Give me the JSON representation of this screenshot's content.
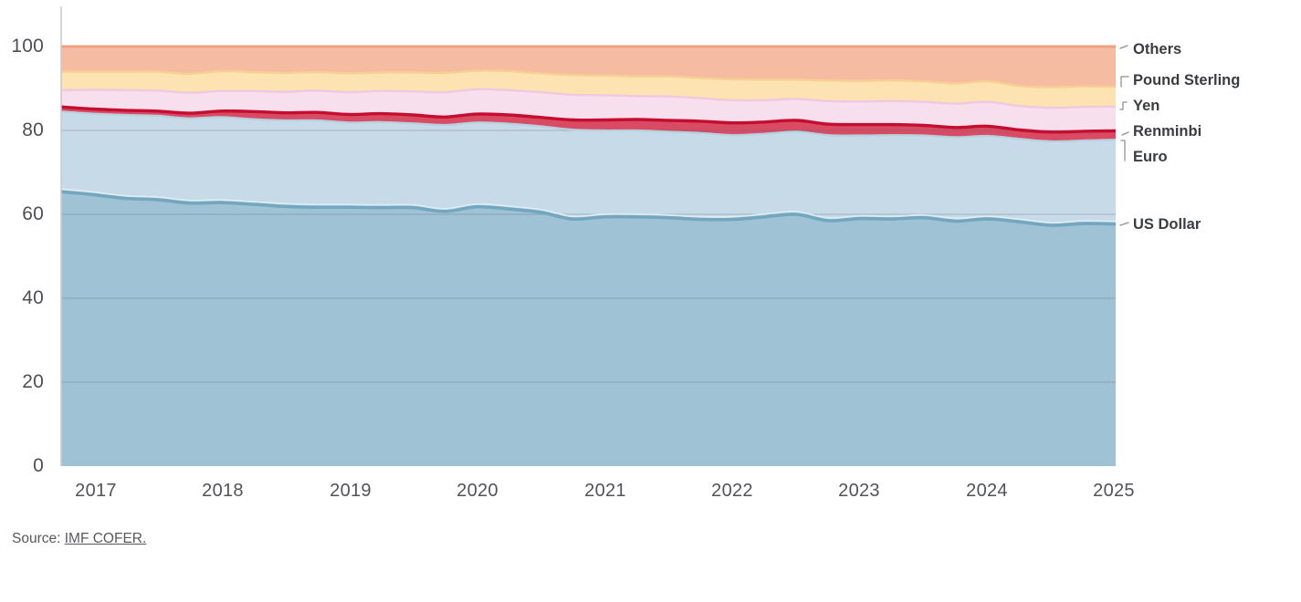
{
  "page": {
    "background": "#ffffff"
  },
  "source": {
    "prefix": "Source: ",
    "link_text": "IMF COFER."
  },
  "chart_data": {
    "type": "area",
    "stacked": true,
    "unit": "%",
    "title": "",
    "xlabel": "",
    "ylabel": "",
    "ylim": [
      0,
      100
    ],
    "y_ticks": [
      0,
      20,
      40,
      60,
      80,
      100
    ],
    "x_tick_labels": [
      "2017",
      "2018",
      "2019",
      "2020",
      "2021",
      "2022",
      "2023",
      "2024",
      "2025"
    ],
    "grid": true,
    "legend_position": "right",
    "x_quarters": [
      "2016 Q4",
      "2017 Q1",
      "2017 Q2",
      "2017 Q3",
      "2017 Q4",
      "2018 Q1",
      "2018 Q2",
      "2018 Q3",
      "2018 Q4",
      "2019 Q1",
      "2019 Q2",
      "2019 Q3",
      "2019 Q4",
      "2020 Q1",
      "2020 Q2",
      "2020 Q3",
      "2020 Q4",
      "2021 Q1",
      "2021 Q2",
      "2021 Q3",
      "2021 Q4",
      "2022 Q1",
      "2022 Q2",
      "2022 Q3",
      "2022 Q4",
      "2023 Q1",
      "2023 Q2",
      "2023 Q3",
      "2023 Q4",
      "2024 Q1",
      "2024 Q2",
      "2024 Q3",
      "2024 Q4",
      "2025 Q1"
    ],
    "series": [
      {
        "name": "US Dollar",
        "fill": "#9FC3D4",
        "stroke": "#73A6BF",
        "values": [
          65.4,
          64.7,
          63.8,
          63.5,
          62.7,
          62.8,
          62.4,
          61.9,
          61.7,
          61.7,
          61.6,
          61.6,
          60.7,
          61.8,
          61.3,
          60.5,
          58.9,
          59.4,
          59.4,
          59.2,
          58.8,
          58.8,
          59.4,
          60.0,
          58.5,
          59.0,
          58.9,
          59.2,
          58.4,
          58.9,
          58.2,
          57.4,
          57.8,
          57.7
        ]
      },
      {
        "name": "Euro",
        "fill": "#C6DBE7",
        "stroke": "#B5D0DF",
        "values": [
          19.1,
          19.3,
          19.9,
          20.0,
          20.2,
          20.4,
          20.3,
          20.5,
          20.7,
          20.2,
          20.4,
          20.1,
          20.6,
          20.1,
          20.3,
          20.5,
          21.3,
          20.6,
          20.6,
          20.5,
          20.6,
          20.1,
          19.8,
          19.7,
          20.4,
          19.8,
          20.0,
          19.6,
          20.0,
          19.8,
          19.8,
          20.0,
          19.8,
          20.1
        ]
      },
      {
        "name": "Renminbi",
        "fill": "#D94A63",
        "stroke": "#C50D2F",
        "values": [
          1.1,
          1.1,
          1.1,
          1.1,
          1.2,
          1.4,
          1.8,
          1.8,
          1.9,
          1.9,
          2.0,
          2.0,
          1.9,
          2.0,
          2.1,
          2.1,
          2.3,
          2.5,
          2.6,
          2.7,
          2.8,
          2.9,
          2.8,
          2.7,
          2.6,
          2.6,
          2.5,
          2.4,
          2.3,
          2.3,
          2.1,
          2.2,
          2.2,
          2.1
        ]
      },
      {
        "name": "Yen",
        "fill": "#F8DFEE",
        "stroke": "#F0C8E0",
        "values": [
          4.0,
          4.6,
          4.8,
          4.9,
          4.9,
          4.8,
          4.9,
          5.0,
          5.2,
          5.3,
          5.4,
          5.6,
          5.9,
          5.9,
          5.9,
          6.0,
          6.0,
          5.9,
          5.6,
          5.7,
          5.5,
          5.4,
          5.2,
          5.1,
          5.5,
          5.5,
          5.6,
          5.6,
          5.7,
          5.8,
          5.7,
          5.8,
          5.8,
          5.8
        ]
      },
      {
        "name": "Pound Sterling",
        "fill": "#FCE3B1",
        "stroke": "#F8CF92",
        "values": [
          4.4,
          4.3,
          4.4,
          4.5,
          4.5,
          4.7,
          4.5,
          4.5,
          4.4,
          4.5,
          4.4,
          4.5,
          4.6,
          4.4,
          4.5,
          4.5,
          4.7,
          4.7,
          4.7,
          4.8,
          4.8,
          5.0,
          4.9,
          4.6,
          4.9,
          4.9,
          4.9,
          4.9,
          4.8,
          4.9,
          4.8,
          4.9,
          4.9,
          4.7
        ]
      },
      {
        "name": "Others",
        "fill": "#F6BCA1",
        "stroke": "#EFA081",
        "values": [
          6.0,
          6.0,
          6.0,
          6.0,
          6.5,
          5.9,
          6.1,
          6.3,
          6.1,
          6.4,
          6.2,
          6.2,
          6.3,
          5.8,
          5.9,
          6.4,
          6.8,
          6.9,
          7.1,
          7.1,
          7.5,
          7.8,
          7.9,
          7.9,
          8.1,
          8.2,
          8.1,
          8.3,
          8.8,
          8.3,
          9.4,
          9.7,
          9.5,
          9.6
        ]
      }
    ],
    "colors": {
      "grid": "rgba(100,108,116,0.38)",
      "axis_line": "#C8C9CB",
      "leader_marks": "#9FA1A4",
      "usd_highlight": "#DFEDF3"
    }
  }
}
